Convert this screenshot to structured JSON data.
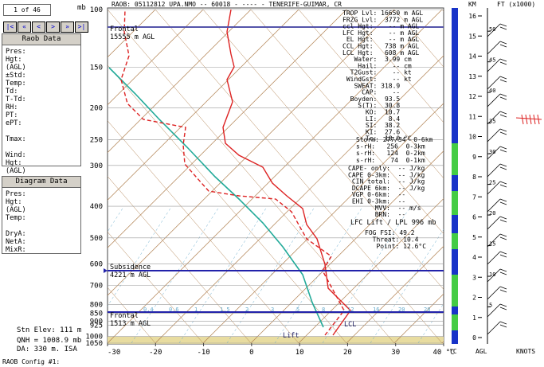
{
  "header": {
    "counter": "1 of 46",
    "unit": "mb",
    "buttons": [
      "|<",
      "«",
      "<",
      ">",
      "»",
      ">|"
    ],
    "title": "RAOB:  05112812 UPA.NMO  --  60018 - ---- - TENERIFE-GUIMAR, CR"
  },
  "raob_panel": {
    "title": "Raob Data",
    "labels": [
      "Pres:",
      "Hgt:",
      "(AGL)",
      "±Std:",
      "Temp:",
      "Td:",
      "T-Td:",
      "RH:",
      "PT:",
      "ePT:",
      "",
      "Tmax:",
      "",
      "Wind:",
      "Hgt:",
      "(AGL)"
    ]
  },
  "diagram_panel": {
    "title": "Diagram Data",
    "labels": [
      "Pres:",
      "Hgt:",
      "(AGL)",
      "Temp:",
      "",
      "DryA:",
      "NetA:",
      "MixR:"
    ]
  },
  "station": [
    "Stn Elev: 111 m",
    "QNH = 1008.9 mb",
    "DA: 330 m. ISA"
  ],
  "footer": "RAOB Config #1:",
  "pressure_ticks": [
    100,
    150,
    200,
    250,
    300,
    400,
    500,
    600,
    700,
    800,
    850,
    900,
    925,
    1000,
    1050
  ],
  "temp_ticks": [
    -30,
    -20,
    -10,
    0,
    10,
    20,
    30,
    {
      "value": 40,
      "label": "40 °C"
    }
  ],
  "xlim": [
    -30,
    40
  ],
  "ylim": [
    1050,
    100
  ],
  "mixing_labels": [
    "0.4",
    "0.6",
    "1",
    "1.5",
    "2",
    "3",
    "5",
    "8",
    "12",
    "16",
    "20",
    "28"
  ],
  "annotations": {
    "frontal_top": [
      "Frontal",
      "15555 m AGL"
    ],
    "subsidence": [
      "Subsidence",
      "4221 m AGL"
    ],
    "frontal_low": [
      "Frontal",
      "1513 m AGL"
    ],
    "lcl": "LCL",
    "lift": "Lift"
  },
  "indices": [
    "TROP Lvl: 16650 m AGL",
    "FRZG Lvl:  3772 m AGL",
    "ccl Hgt:    -- m AGL",
    "LFC Hgt:    -- m AGL",
    " EL Hgt:    -- m AGL",
    "CCL Hgt:   738 m AGL",
    "LCL Hgt:   608 m AGL",
    "   Water:  3.99 cm",
    "    Hail:    -- cm",
    "  T2Gust:    -- kt",
    " WindGst:    -- kt",
    "   SWEAT: 318.9",
    "     CAP:    --",
    "  Boyden:  93.5",
    "    S(T):  30.8",
    "      KO:  10.7",
    "      LI:   8.4",
    "      SI:  38.2",
    "      KI:  27.6",
    "      Tc:  18.0 °C"
  ],
  "storm": [
    "Storm: 277/34  0-6km",
    "s-rH:   256  0-3km",
    "s-rH:   124  0-2km",
    "s-rH:    74  0-1km"
  ],
  "cape": [
    "CAPE- only:  -- J/kg",
    "CAPE 0-3km:  -- J/kg",
    " CIN total:  -- J/kg",
    " DCAPE 6km:  -- J/kg",
    " VGP 0-6km:  --",
    " EHI 0-3km:  --",
    "       MVV:  -- m/s",
    "       BRN:  --"
  ],
  "lift_note": "LFC Lift / LPL 996 mb",
  "fog": [
    "FOG FSI: 49.2",
    "  Threat: 10.4",
    "   Point: 12.6°C"
  ],
  "right_axis": {
    "km_label": "KM",
    "ft_label": "FT (x1000)",
    "km_ticks": [
      0,
      1,
      2,
      3,
      4,
      5,
      6,
      7,
      8,
      9,
      10,
      11,
      12,
      13,
      14,
      15,
      16
    ],
    "ft_ticks": [
      5,
      10,
      15,
      20,
      25,
      30,
      35,
      40,
      45,
      50
    ],
    "agl": "AGL",
    "knots": "KNOTS",
    "deg": "°C"
  }
}
